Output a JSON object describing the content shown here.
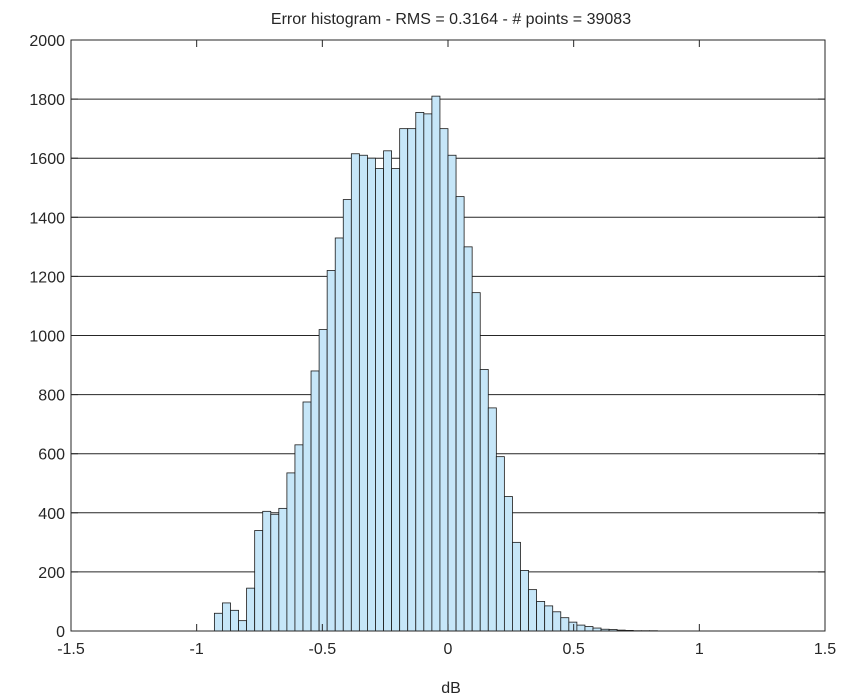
{
  "chart_data": {
    "type": "bar",
    "title": "Error histogram - RMS = 0.3164 -  # points = 39083",
    "xlabel": "dB",
    "ylabel": "",
    "xlim": [
      -1.5,
      1.5
    ],
    "ylim": [
      0,
      2000
    ],
    "xticks": [
      -1.5,
      -1,
      -0.5,
      0,
      0.5,
      1,
      1.5
    ],
    "xtick_labels": [
      "-1.5",
      "-1",
      "-0.5",
      "0",
      "0.5",
      "1",
      "1.5"
    ],
    "yticks": [
      0,
      200,
      400,
      600,
      800,
      1000,
      1200,
      1400,
      1600,
      1800,
      2000
    ],
    "ytick_labels": [
      "0",
      "200",
      "400",
      "600",
      "800",
      "1000",
      "1200",
      "1400",
      "1600",
      "1800",
      "2000"
    ],
    "grid": "horizontal",
    "bin_width": 0.032,
    "bin_left_edges": [
      -0.9295,
      -0.8974,
      -0.8654,
      -0.8333,
      -0.8013,
      -0.7692,
      -0.7372,
      -0.7051,
      -0.6731,
      -0.641,
      -0.609,
      -0.5769,
      -0.5449,
      -0.5128,
      -0.4808,
      -0.4487,
      -0.4167,
      -0.3846,
      -0.3526,
      -0.3205,
      -0.2885,
      -0.2564,
      -0.2244,
      -0.1923,
      -0.1603,
      -0.1282,
      -0.0962,
      -0.0641,
      -0.0321,
      0.0,
      0.0321,
      0.0641,
      0.0962,
      0.1282,
      0.1603,
      0.1923,
      0.2244,
      0.2564,
      0.2885,
      0.3205,
      0.3526,
      0.3846,
      0.4167,
      0.4487,
      0.4808,
      0.5128,
      0.5449,
      0.5769,
      0.609,
      0.641,
      0.6731,
      0.7051,
      0.7372,
      0.7692,
      0.8013
    ],
    "values": [
      60,
      95,
      70,
      35,
      145,
      340,
      405,
      395,
      415,
      535,
      630,
      775,
      880,
      1020,
      1220,
      1330,
      1460,
      1615,
      1610,
      1600,
      1565,
      1625,
      1565,
      1700,
      1700,
      1755,
      1750,
      1810,
      1700,
      1610,
      1470,
      1300,
      1145,
      885,
      755,
      590,
      455,
      300,
      205,
      140,
      100,
      85,
      65,
      45,
      30,
      20,
      15,
      10,
      6,
      5,
      3,
      2,
      1,
      1,
      1
    ],
    "colors": {
      "bar_fill": "#c6e6f8",
      "bar_stroke": "#1a1a1a",
      "grid": "#262626",
      "axis": "#262626"
    }
  }
}
